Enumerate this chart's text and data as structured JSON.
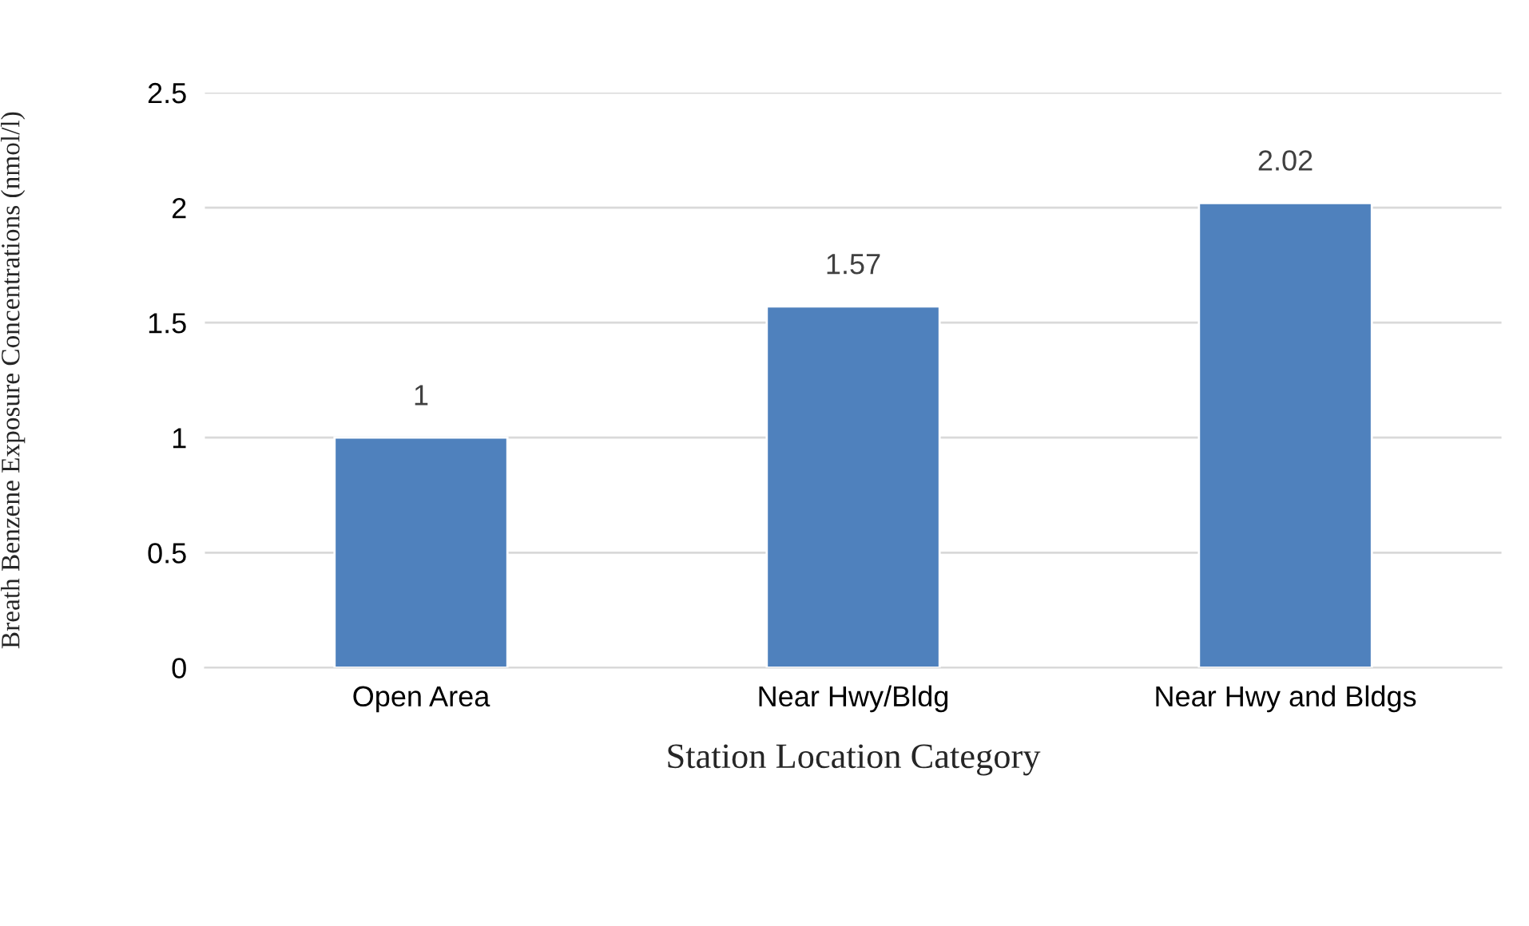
{
  "chart_data": {
    "type": "bar",
    "xlabel": "Station Location Category",
    "ylabel": "Breath Benzene Exposure Concentrations (nmol/l)",
    "categories": [
      "Open Area",
      "Near Hwy/Bldg",
      "Near Hwy and Bldgs"
    ],
    "values": [
      1,
      1.57,
      2.02
    ],
    "color": "#4f81bd",
    "ylim": [
      0,
      2.5
    ],
    "yticks": [
      0,
      0.5,
      1,
      1.5,
      2,
      2.5
    ],
    "grid": "y",
    "data_labels": true
  }
}
